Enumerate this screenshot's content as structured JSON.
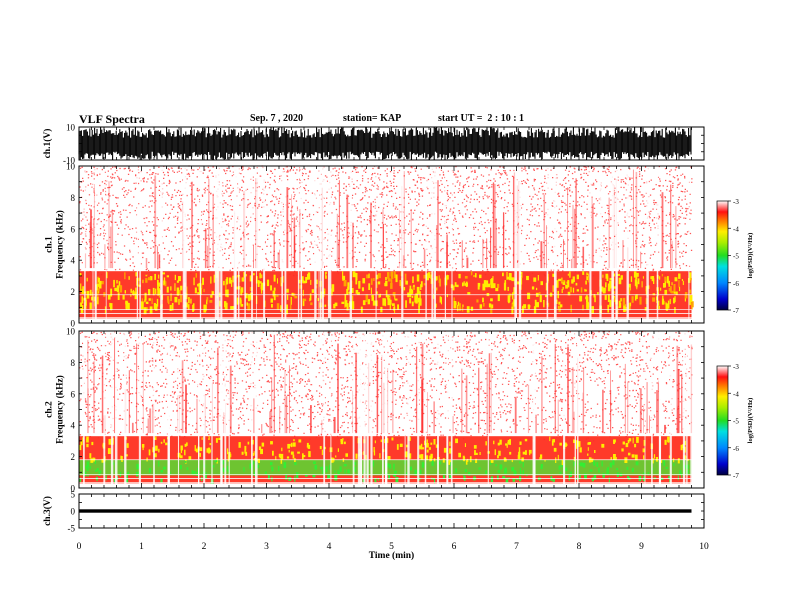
{
  "header": {
    "title": "VLF Spectra",
    "date": "Sep. 7 , 2020",
    "station": "station= KAP",
    "start": "start UT =  2 : 10 : 1"
  },
  "chart_data": [
    {
      "type": "line",
      "panel": "ch1-waveform",
      "ylabel": "ch.1(V)",
      "ylim": [
        -10,
        10
      ],
      "yticks": [
        "10",
        "-10"
      ],
      "xlim": [
        0,
        10
      ],
      "note": "dense black waveform bursts across full range"
    },
    {
      "type": "heatmap",
      "panel": "ch1-spectrogram",
      "ylabel": "ch.1\nFrequency (kHz)",
      "ylim": [
        0,
        10
      ],
      "yticks": [
        "0",
        "2",
        "4",
        "6",
        "8",
        "10"
      ],
      "xlim": [
        0,
        9.8
      ],
      "colorbar": {
        "label": "log(PSD)(V²/Hz)",
        "range": [
          -7,
          -3
        ],
        "ticks": [
          "-3",
          "-4",
          "-5",
          "-6",
          "-7"
        ]
      },
      "bands": {
        "dense_red_top_khz": 3.5,
        "yellow_band_khz": [
          1.0,
          3.2
        ]
      }
    },
    {
      "type": "heatmap",
      "panel": "ch2-spectrogram",
      "ylabel": "ch.2\nFrequency (kHz)",
      "ylim": [
        0,
        10
      ],
      "yticks": [
        "0",
        "2",
        "4",
        "6",
        "8",
        "10"
      ],
      "xlim": [
        0,
        9.8
      ],
      "colorbar": {
        "label": "log(PSD)(V²/Hz)",
        "range": [
          -7,
          -3
        ],
        "ticks": [
          "-3",
          "-4",
          "-5",
          "-6",
          "-7"
        ]
      },
      "bands": {
        "dense_red_top_khz": 3.5,
        "green_band_khz": [
          0.8,
          1.8
        ]
      }
    },
    {
      "type": "line",
      "panel": "ch3-waveform",
      "ylabel": "ch.3(V)",
      "ylim": [
        -5,
        5
      ],
      "yticks": [
        "5",
        "0",
        "-5"
      ],
      "xlim": [
        0,
        10
      ],
      "level_v": [
        -0.5,
        0.5
      ]
    }
  ],
  "xaxis": {
    "label": "Time (min)",
    "ticks": [
      "0",
      "1",
      "2",
      "3",
      "4",
      "5",
      "6",
      "7",
      "8",
      "9",
      "10"
    ]
  },
  "colors": {
    "waveform": "#000000",
    "spectro_low": "#ff2020",
    "spectro_mid": "#ffee00",
    "spectro_green": "#33ee33"
  }
}
